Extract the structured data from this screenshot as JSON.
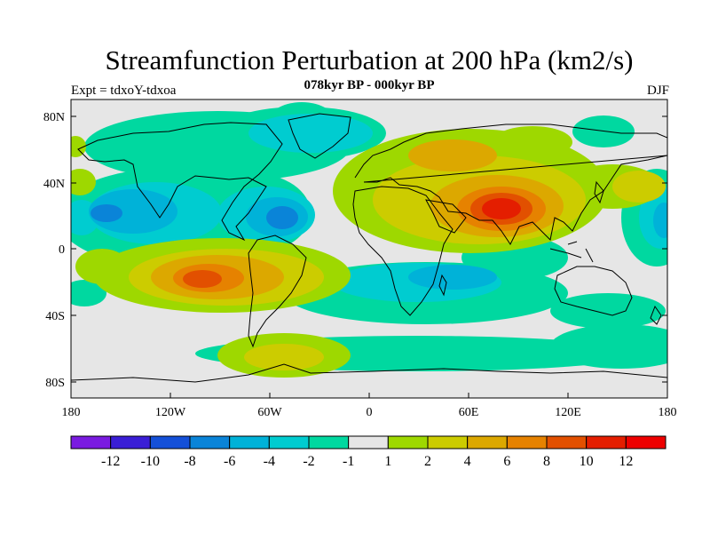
{
  "title": "Streamfunction Perturbation at 200 hPa (km2/s)",
  "subtitle": "078kyr BP - 000kyr BP",
  "left_label": "Expt = tdxoY-tdxoa",
  "right_label": "DJF",
  "axes": {
    "y_ticks": [
      "80N",
      "40N",
      "0",
      "40S",
      "80S"
    ],
    "x_ticks": [
      "180",
      "120W",
      "60W",
      "0",
      "60E",
      "120E",
      "180"
    ]
  },
  "colorbar": {
    "labels": [
      "-12",
      "-10",
      "-8",
      "-6",
      "-4",
      "-2",
      "-1",
      "1",
      "2",
      "4",
      "6",
      "8",
      "10",
      "12"
    ],
    "colors": [
      "#7a1be0",
      "#3a1ed6",
      "#1450d8",
      "#0a84d8",
      "#00b2d8",
      "#00ccd0",
      "#00d8a0",
      "#e6e6e6",
      "#9ed800",
      "#cccc00",
      "#dca800",
      "#e68200",
      "#e25000",
      "#e41e00",
      "#ee0000"
    ]
  },
  "colors": {
    "background": "#e6e6e6",
    "coastline": "#000000"
  }
}
